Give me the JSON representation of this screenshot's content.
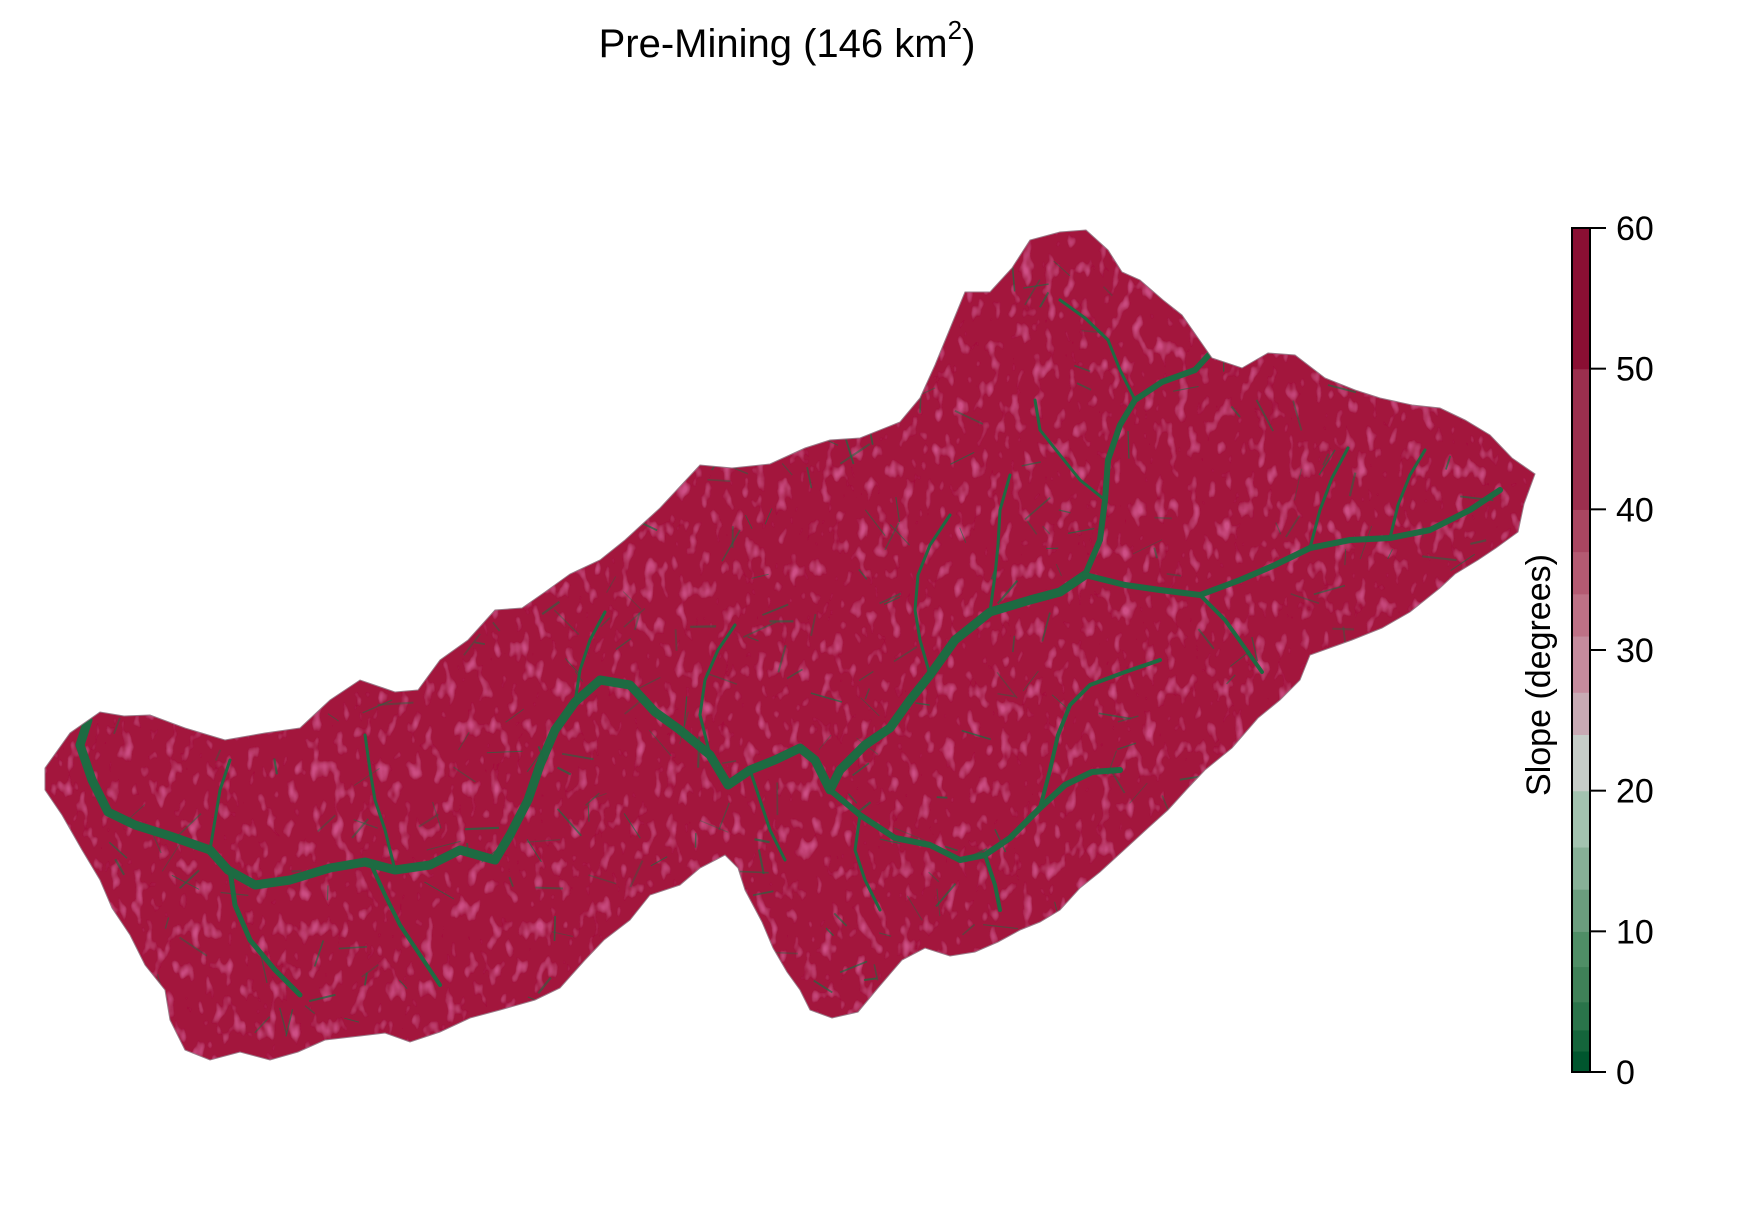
{
  "figure": {
    "title": {
      "prefix": "Pre-Mining (146 km",
      "sup": "2",
      "suffix": ")"
    }
  },
  "colorbar": {
    "label": "Slope (degrees)",
    "min": 0,
    "max": 60,
    "tick_labels": [
      {
        "value": 0,
        "text": "0"
      },
      {
        "value": 10,
        "text": "10"
      },
      {
        "value": 20,
        "text": "20"
      },
      {
        "value": 30,
        "text": "30"
      },
      {
        "value": 40,
        "text": "40"
      },
      {
        "value": 50,
        "text": "50"
      },
      {
        "value": 60,
        "text": "60"
      }
    ],
    "breaks": [
      0,
      1.5,
      3,
      5,
      7.5,
      10,
      13,
      16,
      20,
      24,
      27,
      31,
      34,
      37,
      40,
      50,
      60
    ],
    "colors": [
      "#00562e",
      "#14653b",
      "#2a744a",
      "#3f8158",
      "#4f8e66",
      "#6b9d7e",
      "#87b097",
      "#a3c3b0",
      "#c6cdc8",
      "#c8aab4",
      "#c58b9d",
      "#be7186",
      "#b45a72",
      "#a94661",
      "#9b2f4e",
      "#8a0f33"
    ]
  },
  "map": {
    "palette": {
      "channel": "#1d6b42",
      "hillslope": "#c65b7a",
      "midslope": "#cfc8cb",
      "steep": "#a3193e"
    }
  }
}
